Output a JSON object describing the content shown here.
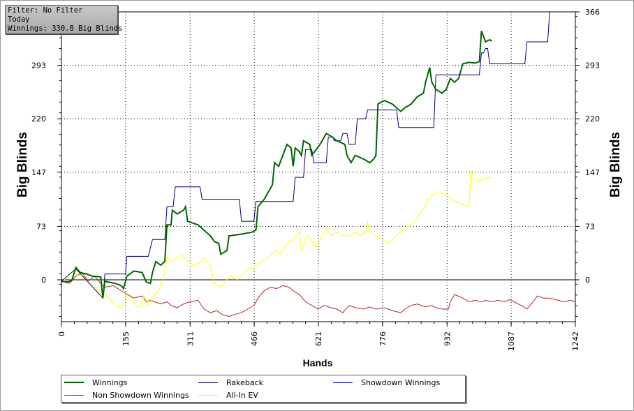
{
  "filter_panel": {
    "line1": "Filter: No Filter",
    "line2": "Today",
    "line3": "Winnings: 330.8 Big Blinds"
  },
  "chart_data": {
    "type": "line",
    "xlabel": "Hands",
    "ylabel_left": "Big Blinds",
    "ylabel_right": "Big Blinds",
    "xlim": [
      0,
      1242
    ],
    "ylim": [
      -52,
      366
    ],
    "x_ticks": [
      0,
      155,
      311,
      466,
      621,
      776,
      932,
      1087,
      1242
    ],
    "y_ticks": [
      0,
      73,
      147,
      220,
      293,
      366
    ],
    "grid": true,
    "legend_position": "bottom",
    "series": [
      {
        "name": "Winnings",
        "color": "#006400",
        "points": [
          [
            0,
            -2
          ],
          [
            15,
            -3
          ],
          [
            25,
            -1
          ],
          [
            35,
            17
          ],
          [
            45,
            10
          ],
          [
            60,
            8
          ],
          [
            75,
            5
          ],
          [
            95,
            4
          ],
          [
            100,
            -25
          ],
          [
            105,
            -2
          ],
          [
            130,
            -5
          ],
          [
            145,
            -8
          ],
          [
            150,
            -12
          ],
          [
            158,
            5
          ],
          [
            175,
            12
          ],
          [
            195,
            10
          ],
          [
            205,
            -3
          ],
          [
            215,
            -5
          ],
          [
            220,
            10
          ],
          [
            228,
            25
          ],
          [
            240,
            20
          ],
          [
            250,
            25
          ],
          [
            255,
            75
          ],
          [
            265,
            75
          ],
          [
            268,
            95
          ],
          [
            280,
            90
          ],
          [
            295,
            95
          ],
          [
            300,
            100
          ],
          [
            305,
            80
          ],
          [
            330,
            75
          ],
          [
            360,
            60
          ],
          [
            370,
            52
          ],
          [
            380,
            50
          ],
          [
            385,
            35
          ],
          [
            400,
            40
          ],
          [
            405,
            60
          ],
          [
            430,
            62
          ],
          [
            460,
            65
          ],
          [
            470,
            68
          ],
          [
            475,
            100
          ],
          [
            490,
            110
          ],
          [
            510,
            130
          ],
          [
            515,
            160
          ],
          [
            525,
            155
          ],
          [
            535,
            170
          ],
          [
            545,
            185
          ],
          [
            555,
            180
          ],
          [
            560,
            155
          ],
          [
            565,
            180
          ],
          [
            575,
            175
          ],
          [
            580,
            170
          ],
          [
            585,
            190
          ],
          [
            600,
            185
          ],
          [
            605,
            170
          ],
          [
            625,
            185
          ],
          [
            640,
            200
          ],
          [
            655,
            195
          ],
          [
            665,
            190
          ],
          [
            685,
            185
          ],
          [
            690,
            170
          ],
          [
            700,
            160
          ],
          [
            710,
            170
          ],
          [
            730,
            165
          ],
          [
            745,
            160
          ],
          [
            755,
            165
          ],
          [
            760,
            170
          ],
          [
            765,
            240
          ],
          [
            780,
            245
          ],
          [
            800,
            240
          ],
          [
            820,
            230
          ],
          [
            830,
            235
          ],
          [
            845,
            240
          ],
          [
            860,
            250
          ],
          [
            875,
            255
          ],
          [
            880,
            270
          ],
          [
            890,
            290
          ],
          [
            895,
            270
          ],
          [
            905,
            260
          ],
          [
            920,
            255
          ],
          [
            930,
            260
          ],
          [
            940,
            275
          ],
          [
            950,
            270
          ],
          [
            960,
            275
          ],
          [
            970,
            295
          ],
          [
            985,
            297
          ],
          [
            1000,
            296
          ],
          [
            1010,
            298
          ],
          [
            1015,
            340
          ],
          [
            1025,
            325
          ],
          [
            1035,
            328
          ],
          [
            1040,
            326
          ]
        ]
      },
      {
        "name": "Rakeback",
        "color": "#000080",
        "points": [
          [
            0,
            -2
          ],
          [
            35,
            15
          ],
          [
            100,
            -25
          ],
          [
            105,
            8
          ],
          [
            155,
            8
          ],
          [
            158,
            32
          ],
          [
            210,
            32
          ],
          [
            220,
            55
          ],
          [
            250,
            55
          ],
          [
            255,
            100
          ],
          [
            270,
            100
          ],
          [
            275,
            127
          ],
          [
            335,
            127
          ],
          [
            340,
            110
          ],
          [
            430,
            110
          ],
          [
            435,
            80
          ],
          [
            465,
            80
          ],
          [
            470,
            107
          ],
          [
            560,
            107
          ],
          [
            565,
            140
          ],
          [
            585,
            140
          ],
          [
            590,
            178
          ],
          [
            605,
            178
          ],
          [
            610,
            160
          ],
          [
            640,
            160
          ],
          [
            645,
            195
          ],
          [
            655,
            195
          ],
          [
            660,
            190
          ],
          [
            675,
            190
          ],
          [
            680,
            200
          ],
          [
            690,
            200
          ],
          [
            695,
            185
          ],
          [
            710,
            185
          ],
          [
            715,
            220
          ],
          [
            735,
            220
          ],
          [
            740,
            232
          ],
          [
            810,
            232
          ],
          [
            815,
            208
          ],
          [
            900,
            208
          ],
          [
            905,
            280
          ],
          [
            1010,
            280
          ],
          [
            1015,
            310
          ],
          [
            1020,
            310
          ],
          [
            1025,
            316
          ],
          [
            1030,
            316
          ],
          [
            1035,
            295
          ],
          [
            1120,
            295
          ],
          [
            1125,
            325
          ],
          [
            1175,
            325
          ],
          [
            1180,
            366
          ],
          [
            1242,
            366
          ]
        ]
      },
      {
        "name": "Showdown Winnings",
        "color": "#0000cd",
        "points": []
      },
      {
        "name": "Non Showdown Winnings",
        "color": "#b22222",
        "points": [
          [
            0,
            -2
          ],
          [
            20,
            -5
          ],
          [
            35,
            5
          ],
          [
            50,
            10
          ],
          [
            65,
            -2
          ],
          [
            80,
            5
          ],
          [
            95,
            -5
          ],
          [
            105,
            -10
          ],
          [
            125,
            -8
          ],
          [
            145,
            -15
          ],
          [
            160,
            -20
          ],
          [
            175,
            -25
          ],
          [
            195,
            -22
          ],
          [
            205,
            -30
          ],
          [
            215,
            -28
          ],
          [
            225,
            -30
          ],
          [
            240,
            -33
          ],
          [
            255,
            -30
          ],
          [
            265,
            -35
          ],
          [
            280,
            -38
          ],
          [
            295,
            -33
          ],
          [
            310,
            -30
          ],
          [
            330,
            -28
          ],
          [
            345,
            -40
          ],
          [
            360,
            -45
          ],
          [
            375,
            -42
          ],
          [
            390,
            -48
          ],
          [
            405,
            -50
          ],
          [
            420,
            -47
          ],
          [
            435,
            -45
          ],
          [
            450,
            -40
          ],
          [
            465,
            -35
          ],
          [
            475,
            -25
          ],
          [
            490,
            -15
          ],
          [
            505,
            -10
          ],
          [
            520,
            -12
          ],
          [
            535,
            -8
          ],
          [
            550,
            -10
          ],
          [
            560,
            -15
          ],
          [
            575,
            -20
          ],
          [
            590,
            -30
          ],
          [
            605,
            -35
          ],
          [
            620,
            -40
          ],
          [
            635,
            -35
          ],
          [
            650,
            -38
          ],
          [
            665,
            -40
          ],
          [
            680,
            -45
          ],
          [
            695,
            -35
          ],
          [
            710,
            -38
          ],
          [
            730,
            -40
          ],
          [
            745,
            -37
          ],
          [
            760,
            -40
          ],
          [
            780,
            -38
          ],
          [
            800,
            -42
          ],
          [
            820,
            -45
          ],
          [
            830,
            -40
          ],
          [
            845,
            -35
          ],
          [
            860,
            -33
          ],
          [
            880,
            -37
          ],
          [
            895,
            -35
          ],
          [
            905,
            -38
          ],
          [
            920,
            -40
          ],
          [
            935,
            -40
          ],
          [
            940,
            -30
          ],
          [
            950,
            -20
          ],
          [
            970,
            -25
          ],
          [
            985,
            -30
          ],
          [
            1000,
            -28
          ],
          [
            1015,
            -30
          ],
          [
            1025,
            -28
          ],
          [
            1040,
            -30
          ],
          [
            1055,
            -28
          ],
          [
            1070,
            -30
          ],
          [
            1085,
            -27
          ],
          [
            1100,
            -32
          ],
          [
            1115,
            -36
          ],
          [
            1125,
            -40
          ],
          [
            1140,
            -30
          ],
          [
            1150,
            -22
          ],
          [
            1165,
            -25
          ],
          [
            1180,
            -25
          ],
          [
            1200,
            -28
          ],
          [
            1215,
            -30
          ],
          [
            1230,
            -28
          ],
          [
            1242,
            -30
          ]
        ]
      },
      {
        "name": "All-In EV",
        "color": "#ffff00",
        "points": [
          [
            0,
            -2
          ],
          [
            35,
            8
          ],
          [
            65,
            -2
          ],
          [
            90,
            -15
          ],
          [
            105,
            -20
          ],
          [
            120,
            -28
          ],
          [
            130,
            -35
          ],
          [
            145,
            -38
          ],
          [
            155,
            -20
          ],
          [
            170,
            -25
          ],
          [
            180,
            -35
          ],
          [
            190,
            -38
          ],
          [
            200,
            -22
          ],
          [
            210,
            -35
          ],
          [
            225,
            -20
          ],
          [
            235,
            -15
          ],
          [
            245,
            0
          ],
          [
            255,
            30
          ],
          [
            265,
            25
          ],
          [
            275,
            28
          ],
          [
            290,
            35
          ],
          [
            300,
            28
          ],
          [
            315,
            20
          ],
          [
            330,
            22
          ],
          [
            345,
            30
          ],
          [
            360,
            18
          ],
          [
            370,
            -5
          ],
          [
            385,
            -10
          ],
          [
            395,
            -2
          ],
          [
            410,
            5
          ],
          [
            425,
            0
          ],
          [
            440,
            10
          ],
          [
            455,
            15
          ],
          [
            470,
            20
          ],
          [
            485,
            25
          ],
          [
            500,
            30
          ],
          [
            515,
            40
          ],
          [
            530,
            35
          ],
          [
            545,
            50
          ],
          [
            560,
            55
          ],
          [
            575,
            65
          ],
          [
            580,
            40
          ],
          [
            595,
            60
          ],
          [
            615,
            45
          ],
          [
            625,
            55
          ],
          [
            640,
            70
          ],
          [
            655,
            60
          ],
          [
            665,
            65
          ],
          [
            680,
            60
          ],
          [
            695,
            60
          ],
          [
            710,
            65
          ],
          [
            725,
            60
          ],
          [
            735,
            65
          ],
          [
            740,
            80
          ],
          [
            745,
            65
          ],
          [
            760,
            60
          ],
          [
            775,
            55
          ],
          [
            790,
            50
          ],
          [
            800,
            55
          ],
          [
            820,
            65
          ],
          [
            830,
            70
          ],
          [
            845,
            75
          ],
          [
            855,
            80
          ],
          [
            860,
            85
          ],
          [
            870,
            95
          ],
          [
            880,
            100
          ],
          [
            885,
            110
          ],
          [
            895,
            115
          ],
          [
            905,
            120
          ],
          [
            915,
            120
          ],
          [
            930,
            115
          ],
          [
            945,
            110
          ],
          [
            960,
            105
          ],
          [
            975,
            102
          ],
          [
            985,
            100
          ],
          [
            990,
            150
          ],
          [
            995,
            140
          ],
          [
            1005,
            135
          ],
          [
            1040,
            140
          ]
        ]
      }
    ]
  },
  "legend": {
    "winnings": "Winnings",
    "rakeback": "Rakeback",
    "showdown": "Showdown Winnings",
    "nonshowdown": "Non Showdown Winnings",
    "allin": "All-In EV"
  }
}
